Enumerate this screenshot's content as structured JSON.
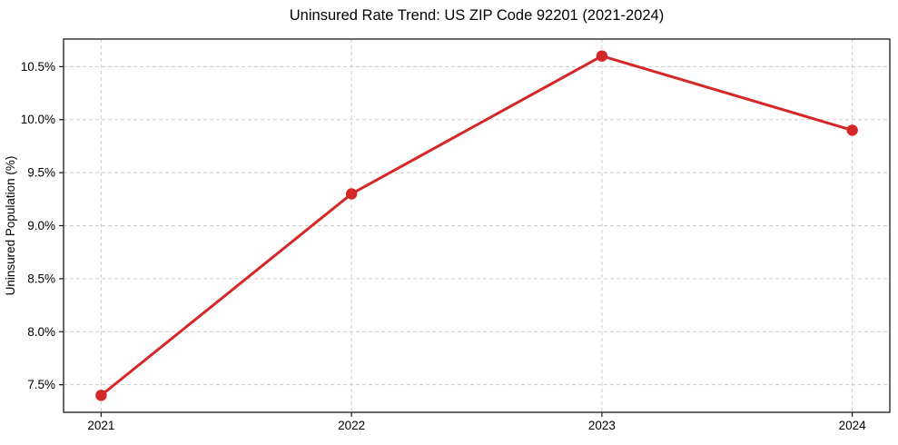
{
  "chart_data": {
    "type": "line",
    "title": "Uninsured Rate Trend: US ZIP Code 92201 (2021-2024)",
    "xlabel": "",
    "ylabel": "Uninsured Population (%)",
    "x": [
      2021,
      2022,
      2023,
      2024
    ],
    "x_tick_labels": [
      "2021",
      "2022",
      "2023",
      "2024"
    ],
    "values": [
      7.4,
      9.3,
      10.6,
      9.9
    ],
    "y_ticks": [
      7.5,
      8.0,
      8.5,
      9.0,
      9.5,
      10.0,
      10.5
    ],
    "y_tick_labels": [
      "7.5%",
      "8.0%",
      "8.5%",
      "9.0%",
      "9.5%",
      "10.0%",
      "10.5%"
    ],
    "xlim": [
      2020.85,
      2024.15
    ],
    "ylim": [
      7.24,
      10.76
    ],
    "grid": true,
    "grid_style": "dashed",
    "legend": false,
    "line_color": "#d62728",
    "marker": "circle",
    "grid_color": "#cccccc",
    "axis_color": "#1a1a1a",
    "background_color": "#ffffff"
  }
}
